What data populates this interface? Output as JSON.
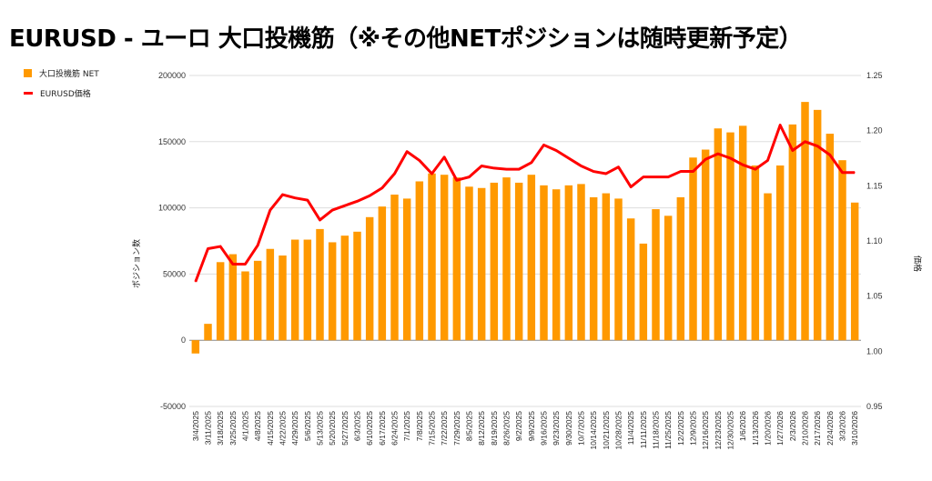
{
  "title": "EURUSD - ユーロ 大口投機筋（※その他NETポジションは随時更新予定）",
  "chart_data": {
    "type": "bar+line",
    "title": "EURUSD - ユーロ 大口投機筋（※その他NETポジションは随時更新予定）",
    "ylabel": "ポジション数",
    "y2label": "価格",
    "ylim": [
      -50000,
      200000
    ],
    "y2lim": [
      0.95,
      1.25
    ],
    "yticks": [
      "200000",
      "150000",
      "100000",
      "50000",
      "0",
      "-50000"
    ],
    "y2ticks": [
      "1.25",
      "1.20",
      "1.15",
      "1.10",
      "1.05",
      "1.00",
      "0.95"
    ],
    "grid": true,
    "legend_position": "top-left",
    "categories": [
      "3/4/2025",
      "3/11/2025",
      "3/18/2025",
      "3/25/2025",
      "4/1/2025",
      "4/8/2025",
      "4/15/2025",
      "4/22/2025",
      "4/29/2025",
      "5/6/2025",
      "5/13/2025",
      "5/20/2025",
      "5/27/2025",
      "6/3/2025",
      "6/10/2025",
      "6/17/2025",
      "6/24/2025",
      "7/1/2025",
      "7/8/2025",
      "7/15/2025",
      "7/22/2025",
      "7/29/2025",
      "8/5/2025",
      "8/12/2025",
      "8/19/2025",
      "8/26/2025",
      "9/2/2025",
      "9/9/2025",
      "9/16/2025",
      "9/23/2025",
      "9/30/2025",
      "10/7/2025",
      "10/14/2025",
      "10/21/2025",
      "10/28/2025",
      "11/4/2025",
      "11/11/2025",
      "11/18/2025",
      "11/25/2025",
      "12/2/2025",
      "12/9/2025",
      "12/16/2025",
      "12/23/2025",
      "12/30/2025",
      "1/6/2026",
      "1/13/2026",
      "1/20/2026",
      "1/27/2026",
      "2/3/2026",
      "2/10/2026",
      "2/17/2026",
      "2/24/2026",
      "3/3/2026",
      "3/10/2026"
    ],
    "series": [
      {
        "name": "大口投機筋  NET",
        "type": "bar",
        "axis": "left",
        "color": "#ff9900",
        "values": [
          -10000,
          12400,
          59000,
          65000,
          52000,
          60000,
          69000,
          64000,
          76000,
          76000,
          84000,
          74000,
          79000,
          82000,
          93000,
          101000,
          110000,
          107000,
          120000,
          126000,
          125000,
          123000,
          116000,
          115000,
          119000,
          123000,
          119000,
          125000,
          117000,
          114000,
          117000,
          118000,
          108000,
          111000,
          107000,
          92000,
          73000,
          99000,
          94000,
          108000,
          138000,
          144000,
          160000,
          157000,
          162000,
          132000,
          111000,
          132000,
          163000,
          180000,
          174000,
          156000,
          136000,
          104000
        ]
      },
      {
        "name": "EURUSD価格",
        "type": "line",
        "axis": "right",
        "color": "#ff0000",
        "values": [
          1.063,
          1.093,
          1.095,
          1.079,
          1.079,
          1.096,
          1.128,
          1.142,
          1.139,
          1.137,
          1.119,
          1.128,
          1.132,
          1.136,
          1.141,
          1.148,
          1.161,
          1.181,
          1.173,
          1.161,
          1.176,
          1.155,
          1.158,
          1.168,
          1.166,
          1.165,
          1.165,
          1.171,
          1.187,
          1.182,
          1.175,
          1.168,
          1.163,
          1.161,
          1.167,
          1.149,
          1.158,
          1.158,
          1.158,
          1.163,
          1.163,
          1.174,
          1.179,
          1.175,
          1.169,
          1.165,
          1.173,
          1.205,
          1.182,
          1.19,
          1.186,
          1.178,
          1.162,
          1.162
        ]
      }
    ]
  }
}
